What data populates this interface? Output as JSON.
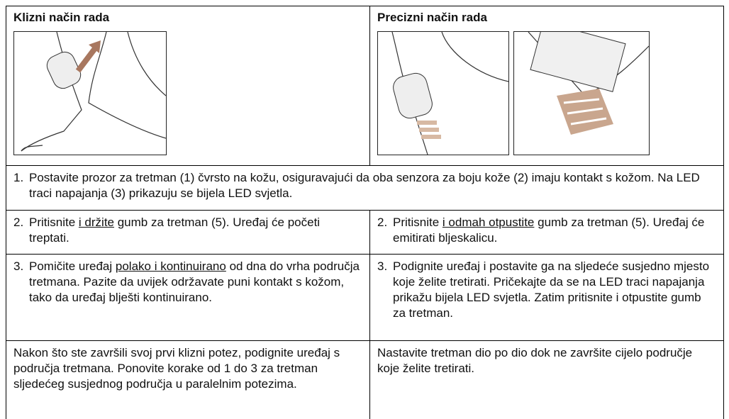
{
  "header": {
    "left_title": "Klizni način rada",
    "right_title": "Precizni način rada"
  },
  "step1": {
    "number": "1.",
    "text": "Postavite prozor za tretman (1) čvrsto na kožu, osiguravajući da oba senzora za boju kože (2) imaju kontakt s kožom. Na LED traci napajanja (3) prikazuju se bijela LED svjetla."
  },
  "rows": [
    {
      "left": {
        "number": "2.",
        "parts": [
          "Pritisnite ",
          "i držite",
          " gumb za tretman (5). Uređaj će početi treptati."
        ]
      },
      "right": {
        "number": "2.",
        "parts": [
          "Pritisnite ",
          "i odmah otpustite",
          " gumb za tretman (5). Uređaj će emitirati bljeskalicu."
        ]
      }
    },
    {
      "left": {
        "number": "3.",
        "parts": [
          "Pomičite uređaj ",
          "polako i kontinuirano",
          " od dna do vrha područja tretmana. Pazite da uvijek održavate puni kontakt s kožom, tako da uređaj blješti kontinuirano."
        ]
      },
      "right": {
        "number": "3.",
        "text": "Podignite uređaj i postavite ga na sljedeće susjedno mjesto koje želite tretirati. Pričekajte da se na LED traci napajanja prikažu bijela LED svjetla. Zatim pritisnite i otpustite gumb za tretman."
      }
    }
  ],
  "final": {
    "left": "Nakon što ste završili svoj prvi klizni potez, podignite uređaj s područja tretmana. Ponovite korake od 1 do 3 za tretman sljedećeg susjednog područja u paralelnim potezima.",
    "right": "Nastavite tretman dio po dio dok ne završite cijelo područje koje želite tretirati."
  }
}
